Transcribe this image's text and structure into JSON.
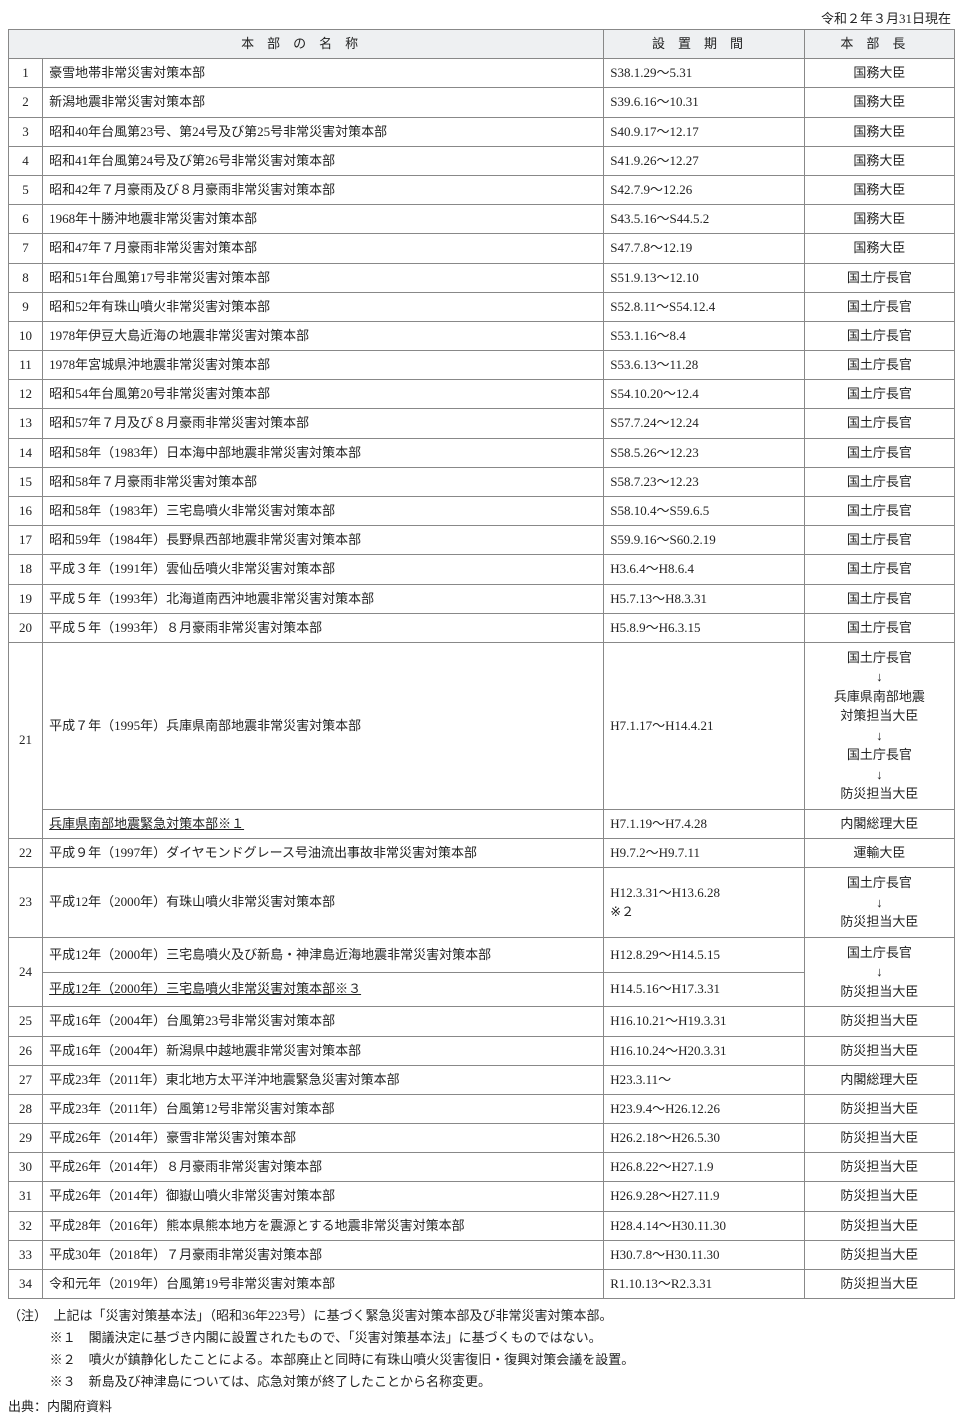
{
  "date_line": "令和２年３月31日現在",
  "headers": {
    "name": "本部の名称",
    "period": "設置期間",
    "chief": "本部長"
  },
  "rows": [
    {
      "num": "1",
      "name": "豪雪地帯非常災害対策本部",
      "period": "S38.1.29～5.31",
      "chief": "国務大臣"
    },
    {
      "num": "2",
      "name": "新潟地震非常災害対策本部",
      "period": "S39.6.16～10.31",
      "chief": "国務大臣"
    },
    {
      "num": "3",
      "name": "昭和40年台風第23号、第24号及び第25号非常災害対策本部",
      "period": "S40.9.17～12.17",
      "chief": "国務大臣"
    },
    {
      "num": "4",
      "name": "昭和41年台風第24号及び第26号非常災害対策本部",
      "period": "S41.9.26～12.27",
      "chief": "国務大臣"
    },
    {
      "num": "5",
      "name": "昭和42年７月豪雨及び８月豪雨非常災害対策本部",
      "period": "S42.7.9～12.26",
      "chief": "国務大臣"
    },
    {
      "num": "6",
      "name": "1968年十勝沖地震非常災害対策本部",
      "period": "S43.5.16～S44.5.2",
      "chief": "国務大臣"
    },
    {
      "num": "7",
      "name": "昭和47年７月豪雨非常災害対策本部",
      "period": "S47.7.8～12.19",
      "chief": "国務大臣"
    },
    {
      "num": "8",
      "name": "昭和51年台風第17号非常災害対策本部",
      "period": "S51.9.13～12.10",
      "chief": "国土庁長官"
    },
    {
      "num": "9",
      "name": "昭和52年有珠山噴火非常災害対策本部",
      "period": "S52.8.11～S54.12.4",
      "chief": "国土庁長官"
    },
    {
      "num": "10",
      "name": "1978年伊豆大島近海の地震非常災害対策本部",
      "period": "S53.1.16～8.4",
      "chief": "国土庁長官"
    },
    {
      "num": "11",
      "name": "1978年宮城県沖地震非常災害対策本部",
      "period": "S53.6.13～11.28",
      "chief": "国土庁長官"
    },
    {
      "num": "12",
      "name": "昭和54年台風第20号非常災害対策本部",
      "period": "S54.10.20～12.4",
      "chief": "国土庁長官"
    },
    {
      "num": "13",
      "name": "昭和57年７月及び８月豪雨非常災害対策本部",
      "period": "S57.7.24～12.24",
      "chief": "国土庁長官"
    },
    {
      "num": "14",
      "name": "昭和58年（1983年）日本海中部地震非常災害対策本部",
      "period": "S58.5.26～12.23",
      "chief": "国土庁長官"
    },
    {
      "num": "15",
      "name": "昭和58年７月豪雨非常災害対策本部",
      "period": "S58.7.23～12.23",
      "chief": "国土庁長官"
    },
    {
      "num": "16",
      "name": "昭和58年（1983年）三宅島噴火非常災害対策本部",
      "period": "S58.10.4～S59.6.5",
      "chief": "国土庁長官"
    },
    {
      "num": "17",
      "name": "昭和59年（1984年）長野県西部地震非常災害対策本部",
      "period": "S59.9.16～S60.2.19",
      "chief": "国土庁長官"
    },
    {
      "num": "18",
      "name": "平成３年（1991年）雲仙岳噴火非常災害対策本部",
      "period": "H3.6.4～H8.6.4",
      "chief": "国土庁長官"
    },
    {
      "num": "19",
      "name": "平成５年（1993年）北海道南西沖地震非常災害対策本部",
      "period": "H5.7.13～H8.3.31",
      "chief": "国土庁長官"
    },
    {
      "num": "20",
      "name": "平成５年（1993年）８月豪雨非常災害対策本部",
      "period": "H5.8.9～H6.3.15",
      "chief": "国土庁長官"
    }
  ],
  "row21": {
    "num": "21",
    "name_a": "平成７年（1995年）兵庫県南部地震非常災害対策本部",
    "period_a": "H7.1.17～H14.4.21",
    "chief_a": [
      "国土庁長官",
      "↓",
      "兵庫県南部地震",
      "対策担当大臣",
      "↓",
      "国土庁長官",
      "↓",
      "防災担当大臣"
    ],
    "name_b": "兵庫県南部地震緊急対策本部※１",
    "period_b": "H7.1.19～H7.4.28",
    "chief_b": "内閣総理大臣"
  },
  "row22": {
    "num": "22",
    "name": "平成９年（1997年）ダイヤモンドグレース号油流出事故非常災害対策本部",
    "period": "H9.7.2～H9.7.11",
    "chief": "運輸大臣"
  },
  "row23": {
    "num": "23",
    "name": "平成12年（2000年）有珠山噴火非常災害対策本部",
    "period": "H12.3.31～H13.6.28\n※２",
    "chief": [
      "国土庁長官",
      "↓",
      "防災担当大臣"
    ]
  },
  "row24": {
    "num": "24",
    "name_a": "平成12年（2000年）三宅島噴火及び新島・神津島近海地震非常災害対策本部",
    "period_a": "H12.8.29～H14.5.15",
    "name_b": "平成12年（2000年）三宅島噴火非常災害対策本部※３",
    "period_b": "H14.5.16～H17.3.31",
    "chief": [
      "国土庁長官",
      "↓",
      "防災担当大臣"
    ]
  },
  "rows_tail": [
    {
      "num": "25",
      "name": "平成16年（2004年）台風第23号非常災害対策本部",
      "period": "H16.10.21～H19.3.31",
      "chief": "防災担当大臣"
    },
    {
      "num": "26",
      "name": "平成16年（2004年）新潟県中越地震非常災害対策本部",
      "period": "H16.10.24～H20.3.31",
      "chief": "防災担当大臣"
    },
    {
      "num": "27",
      "name": "平成23年（2011年）東北地方太平洋沖地震緊急災害対策本部",
      "period": "H23.3.11～",
      "chief": "内閣総理大臣"
    },
    {
      "num": "28",
      "name": "平成23年（2011年）台風第12号非常災害対策本部",
      "period": "H23.9.4～H26.12.26",
      "chief": "防災担当大臣"
    },
    {
      "num": "29",
      "name": "平成26年（2014年）豪雪非常災害対策本部",
      "period": "H26.2.18～H26.5.30",
      "chief": "防災担当大臣"
    },
    {
      "num": "30",
      "name": "平成26年（2014年）８月豪雨非常災害対策本部",
      "period": "H26.8.22～H27.1.9",
      "chief": "防災担当大臣"
    },
    {
      "num": "31",
      "name": "平成26年（2014年）御嶽山噴火非常災害対策本部",
      "period": "H26.9.28～H27.11.9",
      "chief": "防災担当大臣"
    },
    {
      "num": "32",
      "name": "平成28年（2016年）熊本県熊本地方を震源とする地震非常災害対策本部",
      "period": "H28.4.14～H30.11.30",
      "chief": "防災担当大臣"
    },
    {
      "num": "33",
      "name": "平成30年（2018年）７月豪雨非常災害対策本部",
      "period": "H30.7.8～H30.11.30",
      "chief": "防災担当大臣"
    },
    {
      "num": "34",
      "name": "令和元年（2019年）台風第19号非常災害対策本部",
      "period": "R1.10.13～R2.3.31",
      "chief": "防災担当大臣"
    }
  ],
  "notes": {
    "lead": "（注）　上記は「災害対策基本法」（昭和36年223号）に基づく緊急災害対策本部及び非常災害対策本部。",
    "n1": "※１　閣議決定に基づき内閣に設置されたもので、「災害対策基本法」に基づくものではない。",
    "n2": "※２　噴火が鎮静化したことによる。本部廃止と同時に有珠山噴火災害復旧・復興対策会議を設置。",
    "n3": "※３　新島及び神津島については、応急対策が終了したことから名称変更。"
  },
  "source": "出典：内閣府資料"
}
